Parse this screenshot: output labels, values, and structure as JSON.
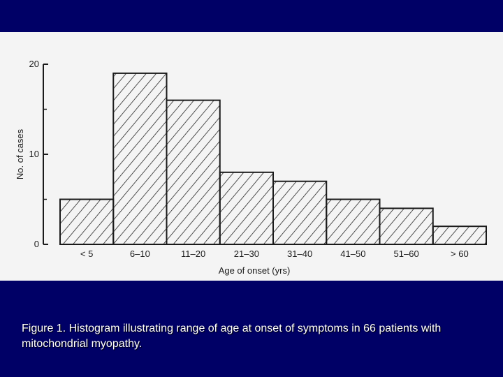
{
  "colors": {
    "slide_background": "#000066",
    "figure_background": "#f4f4f4",
    "ink": "#1a1a1a",
    "caption_text": "#ffffff"
  },
  "chart_data": {
    "type": "bar",
    "title": "",
    "xlabel": "Age of onset (yrs)",
    "ylabel": "No. of cases",
    "categories": [
      "< 5",
      "6–10",
      "11–20",
      "21–30",
      "31–40",
      "41–50",
      "51–60",
      "> 60"
    ],
    "values": [
      5,
      19,
      16,
      8,
      7,
      5,
      4,
      2
    ],
    "ylim": [
      0,
      20
    ],
    "yticks": [
      0,
      10,
      20
    ],
    "bar_fill": "diagonal-hatch",
    "histogram": true,
    "grid": false,
    "legend": "none"
  },
  "caption": {
    "text": "Figure 1. Histogram illustrating range of age at onset of symptoms in 66 patients with mitochondrial myopathy."
  }
}
